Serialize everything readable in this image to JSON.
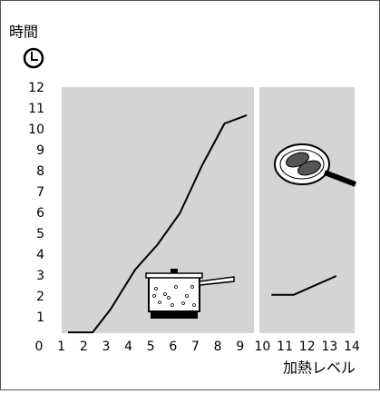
{
  "chart_data": {
    "type": "line",
    "y_label": "時間",
    "x_label": "加熱レベル",
    "color": "#000000",
    "xlim": [
      0,
      14
    ],
    "xticks": [
      0,
      1,
      2,
      3,
      4,
      5,
      6,
      7,
      8,
      9,
      10,
      11,
      12,
      13,
      14
    ],
    "ylim": [
      0,
      12
    ],
    "yticks": [
      1,
      2,
      3,
      4,
      5,
      6,
      7,
      8,
      9,
      10,
      11,
      12
    ],
    "series": [
      {
        "x": [
          1.3,
          2.4,
          3.2,
          4.3,
          5.3,
          6.3,
          7.3,
          8.3,
          9.3
        ],
        "values": [
          0.3,
          0.3,
          1.4,
          3.3,
          4.5,
          6,
          8.3,
          10.3,
          10.7
        ]
      },
      {
        "x": [
          10.4,
          11.4,
          13.3
        ],
        "values": [
          2.1,
          2.1,
          3.0
        ]
      }
    ]
  }
}
